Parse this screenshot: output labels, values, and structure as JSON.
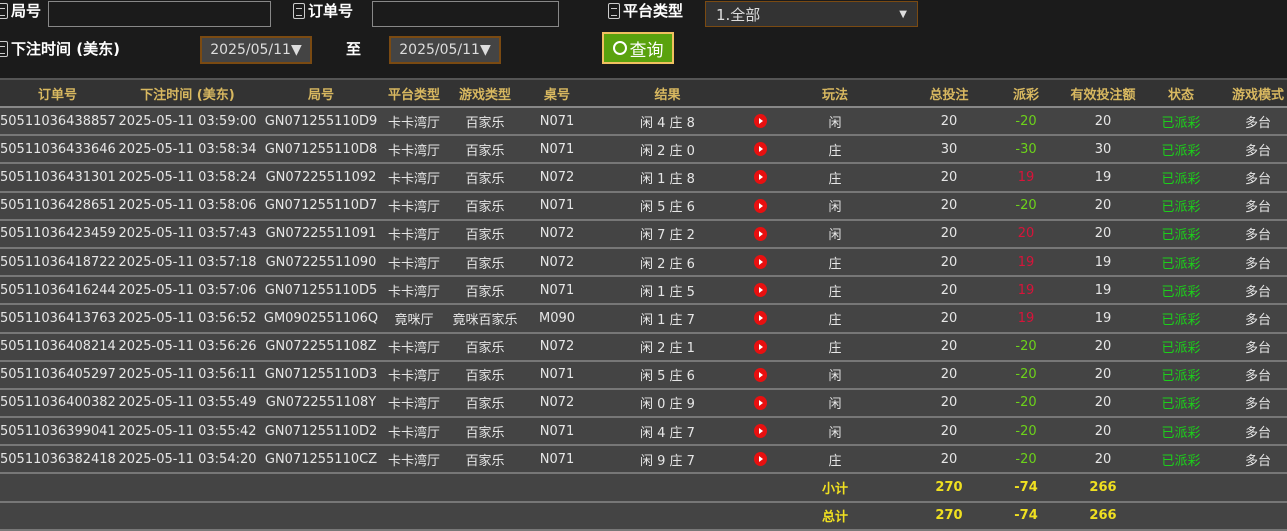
{
  "filters": {
    "round_label": "局号",
    "round_value": "",
    "order_label": "订单号",
    "order_value": "",
    "platform_label": "平台类型",
    "platform_value": "1.全部",
    "time_label": "下注时间 (美东)",
    "date_from": "2025/05/11▼",
    "to_label": "至",
    "date_to": "2025/05/11▼",
    "query_label": "查询"
  },
  "columns": [
    "订单号",
    "下注时间 (美东)",
    "局号",
    "平台类型",
    "游戏类型",
    "桌号",
    "结果",
    "",
    "玩法",
    "总投注",
    "派彩",
    "有效投注额",
    "状态",
    "游戏模式"
  ],
  "rows": [
    [
      "50511036438857",
      "2025-05-11 03:59:00",
      "GN071255110D9",
      "卡卡湾厅",
      "百家乐",
      "N071",
      "闲 4 庄 8",
      "闲",
      "20",
      "-20",
      "20",
      "已派彩",
      "多台"
    ],
    [
      "50511036433646",
      "2025-05-11 03:58:34",
      "GN071255110D8",
      "卡卡湾厅",
      "百家乐",
      "N071",
      "闲 2 庄 0",
      "庄",
      "30",
      "-30",
      "30",
      "已派彩",
      "多台"
    ],
    [
      "50511036431301",
      "2025-05-11 03:58:24",
      "GN07225511092",
      "卡卡湾厅",
      "百家乐",
      "N072",
      "闲 1 庄 8",
      "庄",
      "20",
      "19",
      "19",
      "已派彩",
      "多台"
    ],
    [
      "50511036428651",
      "2025-05-11 03:58:06",
      "GN071255110D7",
      "卡卡湾厅",
      "百家乐",
      "N071",
      "闲 5 庄 6",
      "闲",
      "20",
      "-20",
      "20",
      "已派彩",
      "多台"
    ],
    [
      "50511036423459",
      "2025-05-11 03:57:43",
      "GN07225511091",
      "卡卡湾厅",
      "百家乐",
      "N072",
      "闲 7 庄 2",
      "闲",
      "20",
      "20",
      "20",
      "已派彩",
      "多台"
    ],
    [
      "50511036418722",
      "2025-05-11 03:57:18",
      "GN07225511090",
      "卡卡湾厅",
      "百家乐",
      "N072",
      "闲 2 庄 6",
      "庄",
      "20",
      "19",
      "19",
      "已派彩",
      "多台"
    ],
    [
      "50511036416244",
      "2025-05-11 03:57:06",
      "GN071255110D5",
      "卡卡湾厅",
      "百家乐",
      "N071",
      "闲 1 庄 5",
      "庄",
      "20",
      "19",
      "19",
      "已派彩",
      "多台"
    ],
    [
      "50511036413763",
      "2025-05-11 03:56:52",
      "GM0902551106Q",
      "竟咪厅",
      "竟咪百家乐",
      "M090",
      "闲 1 庄 7",
      "庄",
      "20",
      "19",
      "19",
      "已派彩",
      "多台"
    ],
    [
      "50511036408214",
      "2025-05-11 03:56:26",
      "GN0722551108Z",
      "卡卡湾厅",
      "百家乐",
      "N072",
      "闲 2 庄 1",
      "庄",
      "20",
      "-20",
      "20",
      "已派彩",
      "多台"
    ],
    [
      "50511036405297",
      "2025-05-11 03:56:11",
      "GN071255110D3",
      "卡卡湾厅",
      "百家乐",
      "N071",
      "闲 5 庄 6",
      "闲",
      "20",
      "-20",
      "20",
      "已派彩",
      "多台"
    ],
    [
      "50511036400382",
      "2025-05-11 03:55:49",
      "GN0722551108Y",
      "卡卡湾厅",
      "百家乐",
      "N072",
      "闲 0 庄 9",
      "闲",
      "20",
      "-20",
      "20",
      "已派彩",
      "多台"
    ],
    [
      "50511036399041",
      "2025-05-11 03:55:42",
      "GN071255110D2",
      "卡卡湾厅",
      "百家乐",
      "N071",
      "闲 4 庄 7",
      "闲",
      "20",
      "-20",
      "20",
      "已派彩",
      "多台"
    ],
    [
      "50511036382418",
      "2025-05-11 03:54:20",
      "GN071255110CZ",
      "卡卡湾厅",
      "百家乐",
      "N071",
      "闲 9 庄 7",
      "庄",
      "20",
      "-20",
      "20",
      "已派彩",
      "多台"
    ]
  ],
  "subtotal": {
    "label": "小计",
    "bet": "270",
    "payout": "-74",
    "valid": "266"
  },
  "total": {
    "label": "总计",
    "bet": "270",
    "payout": "-74",
    "valid": "266"
  },
  "colors": {
    "negative": "#6cd21a",
    "positive": "#d8143a",
    "status": "#1ccf1a",
    "header_text": "#d8b860",
    "totals": "#f0e020"
  }
}
